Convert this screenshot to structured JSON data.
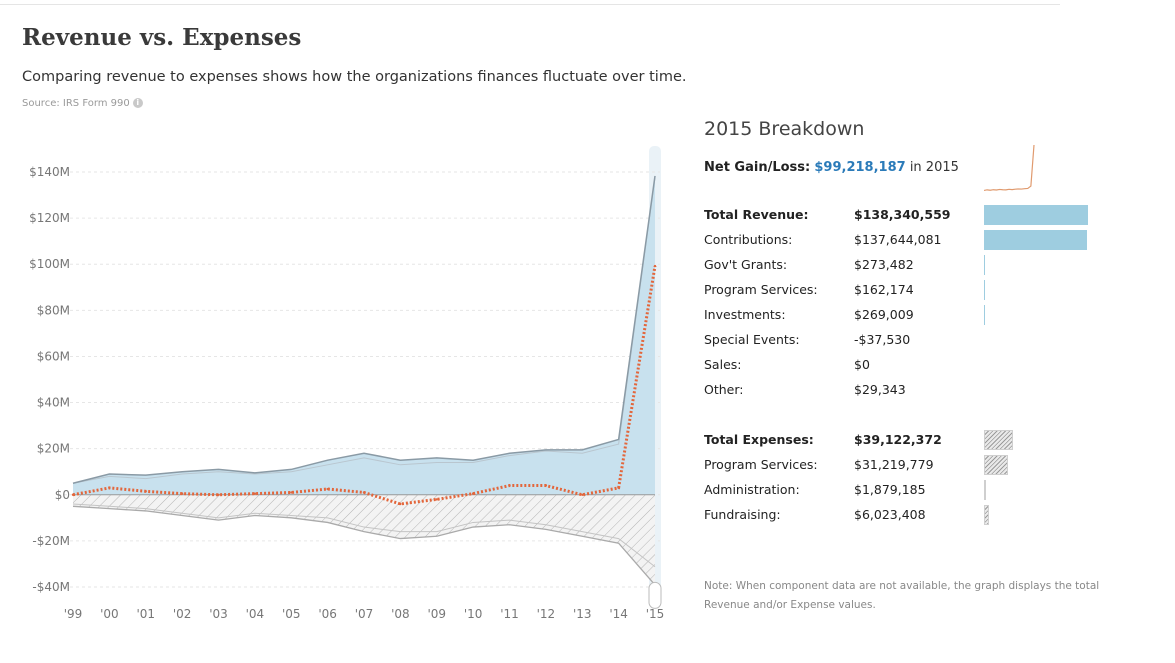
{
  "header": {
    "title": "Revenue vs. Expenses",
    "subtitle": "Comparing revenue to expenses shows how the organizations finances fluctuate over time.",
    "source": "Source: IRS Form 990",
    "info_glyph": "i"
  },
  "chart_data": {
    "type": "area",
    "x": [
      "'99",
      "'00",
      "'01",
      "'02",
      "'03",
      "'04",
      "'05",
      "'06",
      "'07",
      "'08",
      "'09",
      "'10",
      "'11",
      "'12",
      "'13",
      "'14",
      "'15"
    ],
    "ylim": [
      -40,
      140
    ],
    "yticks": [
      140,
      120,
      100,
      80,
      60,
      40,
      20,
      0,
      -20,
      -40
    ],
    "ytick_labels": [
      "$140M",
      "$120M",
      "$100M",
      "$80M",
      "$60M",
      "$40M",
      "$20M",
      "$0",
      "-$20M",
      "-$40M"
    ],
    "grid": true,
    "series": [
      {
        "values": [
          5,
          9,
          8.5,
          10,
          11,
          9.5,
          11,
          15,
          18,
          15,
          16,
          15,
          18,
          19.5,
          19.5,
          24,
          138.3
        ]
      },
      {
        "values": [
          5,
          8,
          7,
          9,
          10,
          9,
          10,
          13,
          16,
          13,
          14,
          14,
          17,
          19,
          18,
          22,
          137.6
        ]
      },
      {
        "values": [
          -5,
          -6,
          -7,
          -9,
          -11,
          -9,
          -10,
          -12,
          -16,
          -19,
          -18,
          -14,
          -13,
          -15,
          -18,
          -21,
          -39.1
        ]
      },
      {
        "values": [
          -4,
          -5,
          -6,
          -8,
          -10,
          -8,
          -9,
          -10,
          -14,
          -16,
          -16,
          -12,
          -11,
          -13,
          -16,
          -19,
          -31.2
        ]
      },
      {
        "values": [
          0,
          3,
          1.5,
          0.5,
          0,
          0.5,
          1,
          2.5,
          1,
          -4,
          -2,
          0.5,
          4,
          4,
          0,
          3,
          99.2
        ]
      }
    ],
    "colors": {
      "revenue_fill": "#c8e1ee",
      "revenue_line": "#8a9aa5",
      "net_line": "#e3663b",
      "expense_line": "#aaaaaa"
    }
  },
  "breakdown": {
    "title": "2015 Breakdown",
    "net_label": "Net Gain/Loss:",
    "net_value": "$99,218,187",
    "net_suffix": "in 2015",
    "spark_values": [
      2,
      2.5,
      2.2,
      2.6,
      2.4,
      2.8,
      2.6,
      2.5,
      2.9,
      2.7,
      3.0,
      3.2,
      3.1,
      3.4,
      3.6,
      5.5,
      38
    ],
    "revenue_rows": [
      {
        "label": "Total Revenue:",
        "value": "$138,340,559",
        "bold": true,
        "frac": 1.0
      },
      {
        "label": "Contributions:",
        "value": "$137,644,081",
        "bold": false,
        "frac": 0.995
      },
      {
        "label": "Gov't Grants:",
        "value": "$273,482",
        "bold": false,
        "frac": 0.002
      },
      {
        "label": "Program Services:",
        "value": "$162,174",
        "bold": false,
        "frac": 0.001
      },
      {
        "label": "Investments:",
        "value": "$269,009",
        "bold": false,
        "frac": 0.002
      },
      {
        "label": "Special Events:",
        "value": "-$37,530",
        "bold": false,
        "frac": 0
      },
      {
        "label": "Sales:",
        "value": "$0",
        "bold": false,
        "frac": 0
      },
      {
        "label": "Other:",
        "value": "$29,343",
        "bold": false,
        "frac": 0
      }
    ],
    "expense_rows": [
      {
        "label": "Total Expenses:",
        "value": "$39,122,372",
        "bold": true,
        "frac": 0.283
      },
      {
        "label": "Program Services:",
        "value": "$31,219,779",
        "bold": false,
        "frac": 0.226
      },
      {
        "label": "Administration:",
        "value": "$1,879,185",
        "bold": false,
        "frac": 0.014
      },
      {
        "label": "Fundraising:",
        "value": "$6,023,408",
        "bold": false,
        "frac": 0.044
      }
    ],
    "note": "Note: When component data are not available, the graph displays the total Revenue and/or Expense values."
  }
}
